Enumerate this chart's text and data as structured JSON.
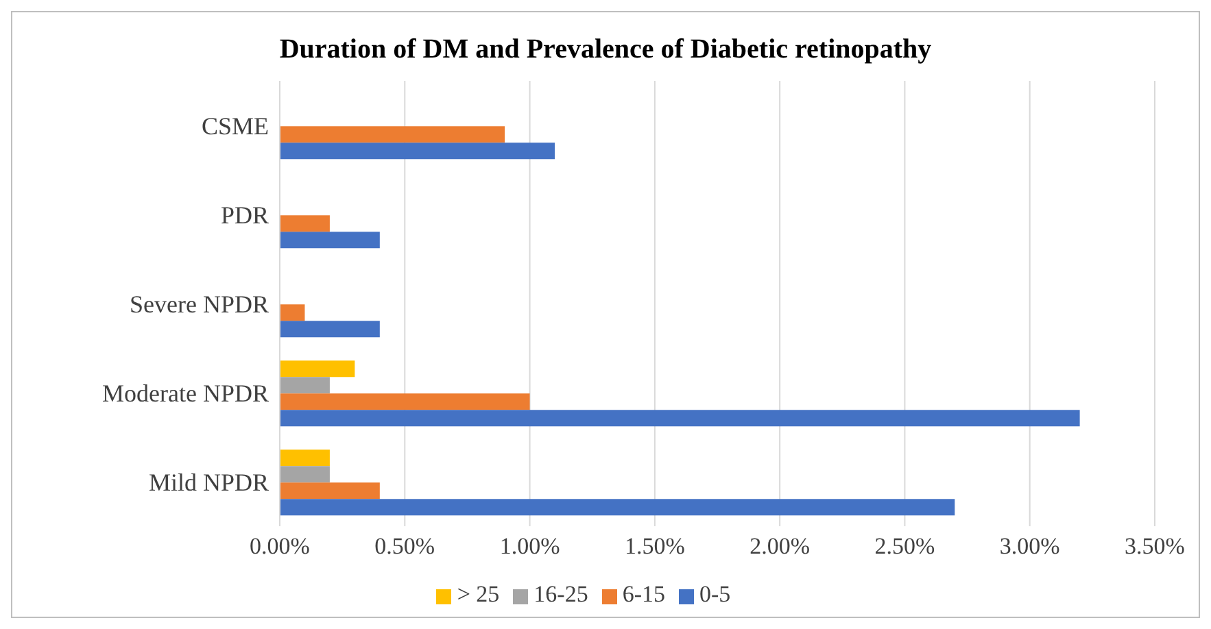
{
  "chart_data": {
    "type": "bar",
    "orientation": "horizontal",
    "title": "Duration of DM and Prevalence of Diabetic retinopathy",
    "categories": [
      "CSME",
      "PDR",
      "Severe NPDR",
      "Moderate NPDR",
      "Mild NPDR"
    ],
    "series": [
      {
        "name": "> 25",
        "color": "#ffc000",
        "values": [
          null,
          null,
          null,
          0.3,
          0.2
        ]
      },
      {
        "name": "16-25",
        "color": "#a5a5a5",
        "values": [
          null,
          null,
          null,
          0.2,
          0.2
        ]
      },
      {
        "name": "6-15",
        "color": "#ed7d31",
        "values": [
          0.9,
          0.2,
          0.1,
          1.0,
          0.4
        ]
      },
      {
        "name": "0-5",
        "color": "#4472c4",
        "values": [
          1.1,
          0.4,
          0.4,
          3.2,
          2.7
        ]
      }
    ],
    "xlim": [
      0,
      3.5
    ],
    "xticks": [
      {
        "value": 0,
        "label": "0.00%"
      },
      {
        "value": 0.5,
        "label": "0.50%"
      },
      {
        "value": 1,
        "label": "1.00%"
      },
      {
        "value": 1.5,
        "label": "1.50%"
      },
      {
        "value": 2,
        "label": "2.00%"
      },
      {
        "value": 2.5,
        "label": "2.50%"
      },
      {
        "value": 3,
        "label": "3.00%"
      },
      {
        "value": 3.5,
        "label": "3.50%"
      }
    ],
    "grid": "x",
    "legend": "bottom"
  }
}
